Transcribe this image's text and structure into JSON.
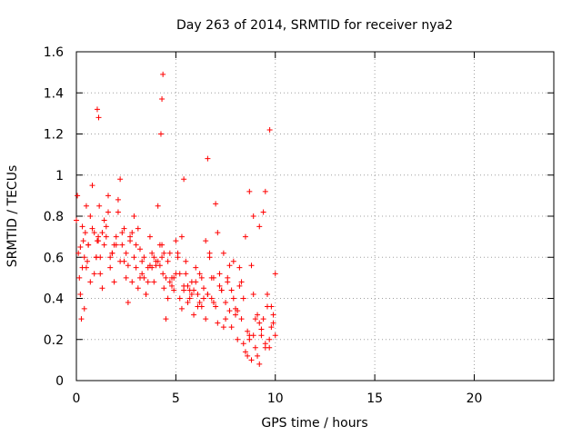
{
  "chart_data": {
    "type": "scatter",
    "title": "Day 263 of 2014, SRMTID for receiver nya2",
    "xlabel": "GPS time / hours",
    "ylabel": "SRMTID / TECUs",
    "xlim": [
      0,
      24
    ],
    "ylim": [
      0,
      1.6
    ],
    "xticks": [
      0,
      5,
      10,
      15,
      20
    ],
    "xtick_labels": [
      "0",
      "5",
      "10",
      "15",
      "20"
    ],
    "yticks": [
      0,
      0.2,
      0.4,
      0.6,
      0.8,
      1.0,
      1.2,
      1.4,
      1.6
    ],
    "ytick_labels": [
      "0",
      "0.2",
      "0.4",
      "0.6",
      "0.8",
      "1",
      "1.2",
      "1.4",
      "1.6"
    ],
    "grid": true,
    "marker": "plus",
    "color": "#ff0000",
    "series": [
      {
        "x": [
          0.0,
          0.1,
          0.15,
          0.2,
          0.25,
          0.3,
          0.35,
          0.4,
          0.45,
          0.5,
          0.55,
          0.6,
          0.7,
          0.8,
          0.9,
          1.0,
          1.05,
          1.1,
          1.15,
          1.2,
          1.3,
          1.4,
          1.5,
          1.6,
          1.7,
          1.8,
          1.9,
          2.0,
          2.1,
          2.2,
          2.3,
          2.4,
          2.5,
          2.6,
          2.7,
          2.8,
          2.9,
          3.0,
          3.1,
          3.2,
          3.3,
          3.4,
          3.5,
          3.6,
          3.7,
          3.8,
          3.9,
          4.0,
          4.1,
          4.2,
          4.3,
          4.35,
          4.4,
          4.5,
          4.6,
          4.7,
          4.8,
          4.9,
          5.0,
          5.1,
          5.2,
          5.3,
          5.4,
          5.5,
          5.6,
          5.7,
          5.8,
          5.9,
          6.0,
          6.1,
          6.2,
          6.3,
          6.4,
          6.5,
          6.6,
          6.7,
          6.8,
          6.9,
          7.0,
          7.1,
          7.2,
          7.3,
          7.4,
          7.5,
          7.6,
          7.7,
          7.8,
          7.9,
          8.0,
          8.1,
          8.2,
          8.3,
          8.4,
          8.5,
          8.6,
          8.7,
          8.8,
          8.9,
          9.0,
          9.1,
          9.2,
          9.3,
          9.4,
          9.5,
          9.6,
          9.7,
          9.8,
          9.9,
          10.0,
          0.05,
          0.3,
          0.6,
          0.9,
          1.2,
          1.5,
          1.8,
          2.1,
          2.4,
          2.7,
          3.0,
          3.3,
          3.6,
          3.9,
          4.2,
          4.5,
          4.8,
          5.1,
          5.4,
          5.7,
          6.0,
          6.3,
          6.6,
          6.9,
          7.2,
          7.5,
          7.8,
          8.1,
          8.4,
          8.7,
          9.0,
          9.3,
          9.6,
          9.9,
          0.2,
          0.5,
          0.8,
          1.1,
          1.4,
          1.7,
          2.0,
          2.3,
          2.6,
          2.9,
          3.2,
          3.5,
          3.8,
          4.1,
          4.4,
          4.7,
          5.0,
          5.3,
          5.6,
          5.9,
          6.2,
          6.5,
          6.8,
          7.1,
          7.4,
          7.7,
          8.0,
          8.3,
          8.6,
          8.9,
          9.2,
          9.5,
          9.8,
          0.4,
          0.7,
          1.0,
          1.3,
          1.6,
          1.9,
          2.2,
          2.5,
          2.8,
          3.1,
          3.4,
          3.7,
          4.0,
          4.3,
          4.6,
          4.9,
          5.2,
          5.5,
          5.8,
          6.1,
          6.4,
          6.7,
          7.0,
          7.3,
          7.6,
          7.9,
          8.2,
          8.5,
          8.8,
          9.1,
          9.4,
          9.7,
          10.0,
          1.05,
          1.12,
          4.25,
          4.3,
          4.35,
          9.72,
          6.6,
          5.4,
          8.7,
          8.9,
          9.2,
          9.5
        ],
        "y": [
          0.78,
          0.62,
          0.5,
          0.42,
          0.3,
          0.55,
          0.68,
          0.6,
          0.72,
          0.85,
          0.58,
          0.66,
          0.8,
          0.95,
          0.72,
          0.6,
          0.68,
          0.7,
          0.85,
          0.52,
          0.45,
          0.66,
          0.75,
          0.9,
          0.55,
          0.62,
          0.48,
          0.7,
          0.82,
          0.58,
          0.66,
          0.74,
          0.5,
          0.38,
          0.68,
          0.72,
          0.6,
          0.55,
          0.45,
          0.64,
          0.58,
          0.5,
          0.42,
          0.55,
          0.7,
          0.62,
          0.48,
          0.56,
          0.85,
          0.66,
          0.6,
          0.52,
          0.45,
          0.3,
          0.58,
          0.62,
          0.5,
          0.44,
          0.68,
          0.6,
          0.4,
          0.35,
          0.46,
          0.52,
          0.38,
          0.44,
          0.48,
          0.32,
          0.55,
          0.42,
          0.38,
          0.5,
          0.45,
          0.3,
          0.42,
          0.6,
          0.5,
          0.38,
          0.36,
          0.28,
          0.52,
          0.44,
          0.26,
          0.3,
          0.5,
          0.34,
          0.26,
          0.4,
          0.32,
          0.2,
          0.55,
          0.3,
          0.18,
          0.14,
          0.12,
          0.2,
          0.1,
          0.22,
          0.16,
          0.12,
          0.08,
          0.22,
          0.3,
          0.18,
          0.36,
          0.2,
          0.26,
          0.32,
          0.22,
          0.9,
          0.75,
          0.66,
          0.52,
          0.6,
          0.7,
          0.62,
          0.88,
          0.58,
          0.7,
          0.66,
          0.52,
          0.48,
          0.6,
          0.56,
          0.5,
          0.46,
          0.62,
          0.44,
          0.4,
          0.48,
          0.36,
          0.42,
          0.5,
          0.46,
          0.38,
          0.44,
          0.34,
          0.4,
          0.22,
          0.3,
          0.25,
          0.42,
          0.28,
          0.65,
          0.55,
          0.74,
          0.68,
          0.78,
          0.6,
          0.66,
          0.72,
          0.56,
          0.8,
          0.5,
          0.42,
          0.55,
          0.58,
          0.62,
          0.48,
          0.52,
          0.7,
          0.46,
          0.44,
          0.52,
          0.68,
          0.4,
          0.72,
          0.62,
          0.56,
          0.35,
          0.48,
          0.24,
          0.42,
          0.28,
          0.16,
          0.36,
          0.35,
          0.48,
          0.6,
          0.72,
          0.82,
          0.66,
          0.98,
          0.62,
          0.48,
          0.74,
          0.6,
          0.56,
          0.58,
          0.66,
          0.4,
          0.5,
          0.52,
          0.58,
          0.42,
          0.36,
          0.4,
          0.62,
          0.86,
          0.44,
          0.48,
          0.58,
          0.46,
          0.7,
          0.56,
          0.32,
          0.82,
          0.16,
          0.52,
          1.32,
          1.28,
          1.2,
          1.37,
          1.49,
          1.22,
          1.08,
          0.98,
          0.92,
          0.8,
          0.75,
          0.92
        ]
      }
    ]
  }
}
